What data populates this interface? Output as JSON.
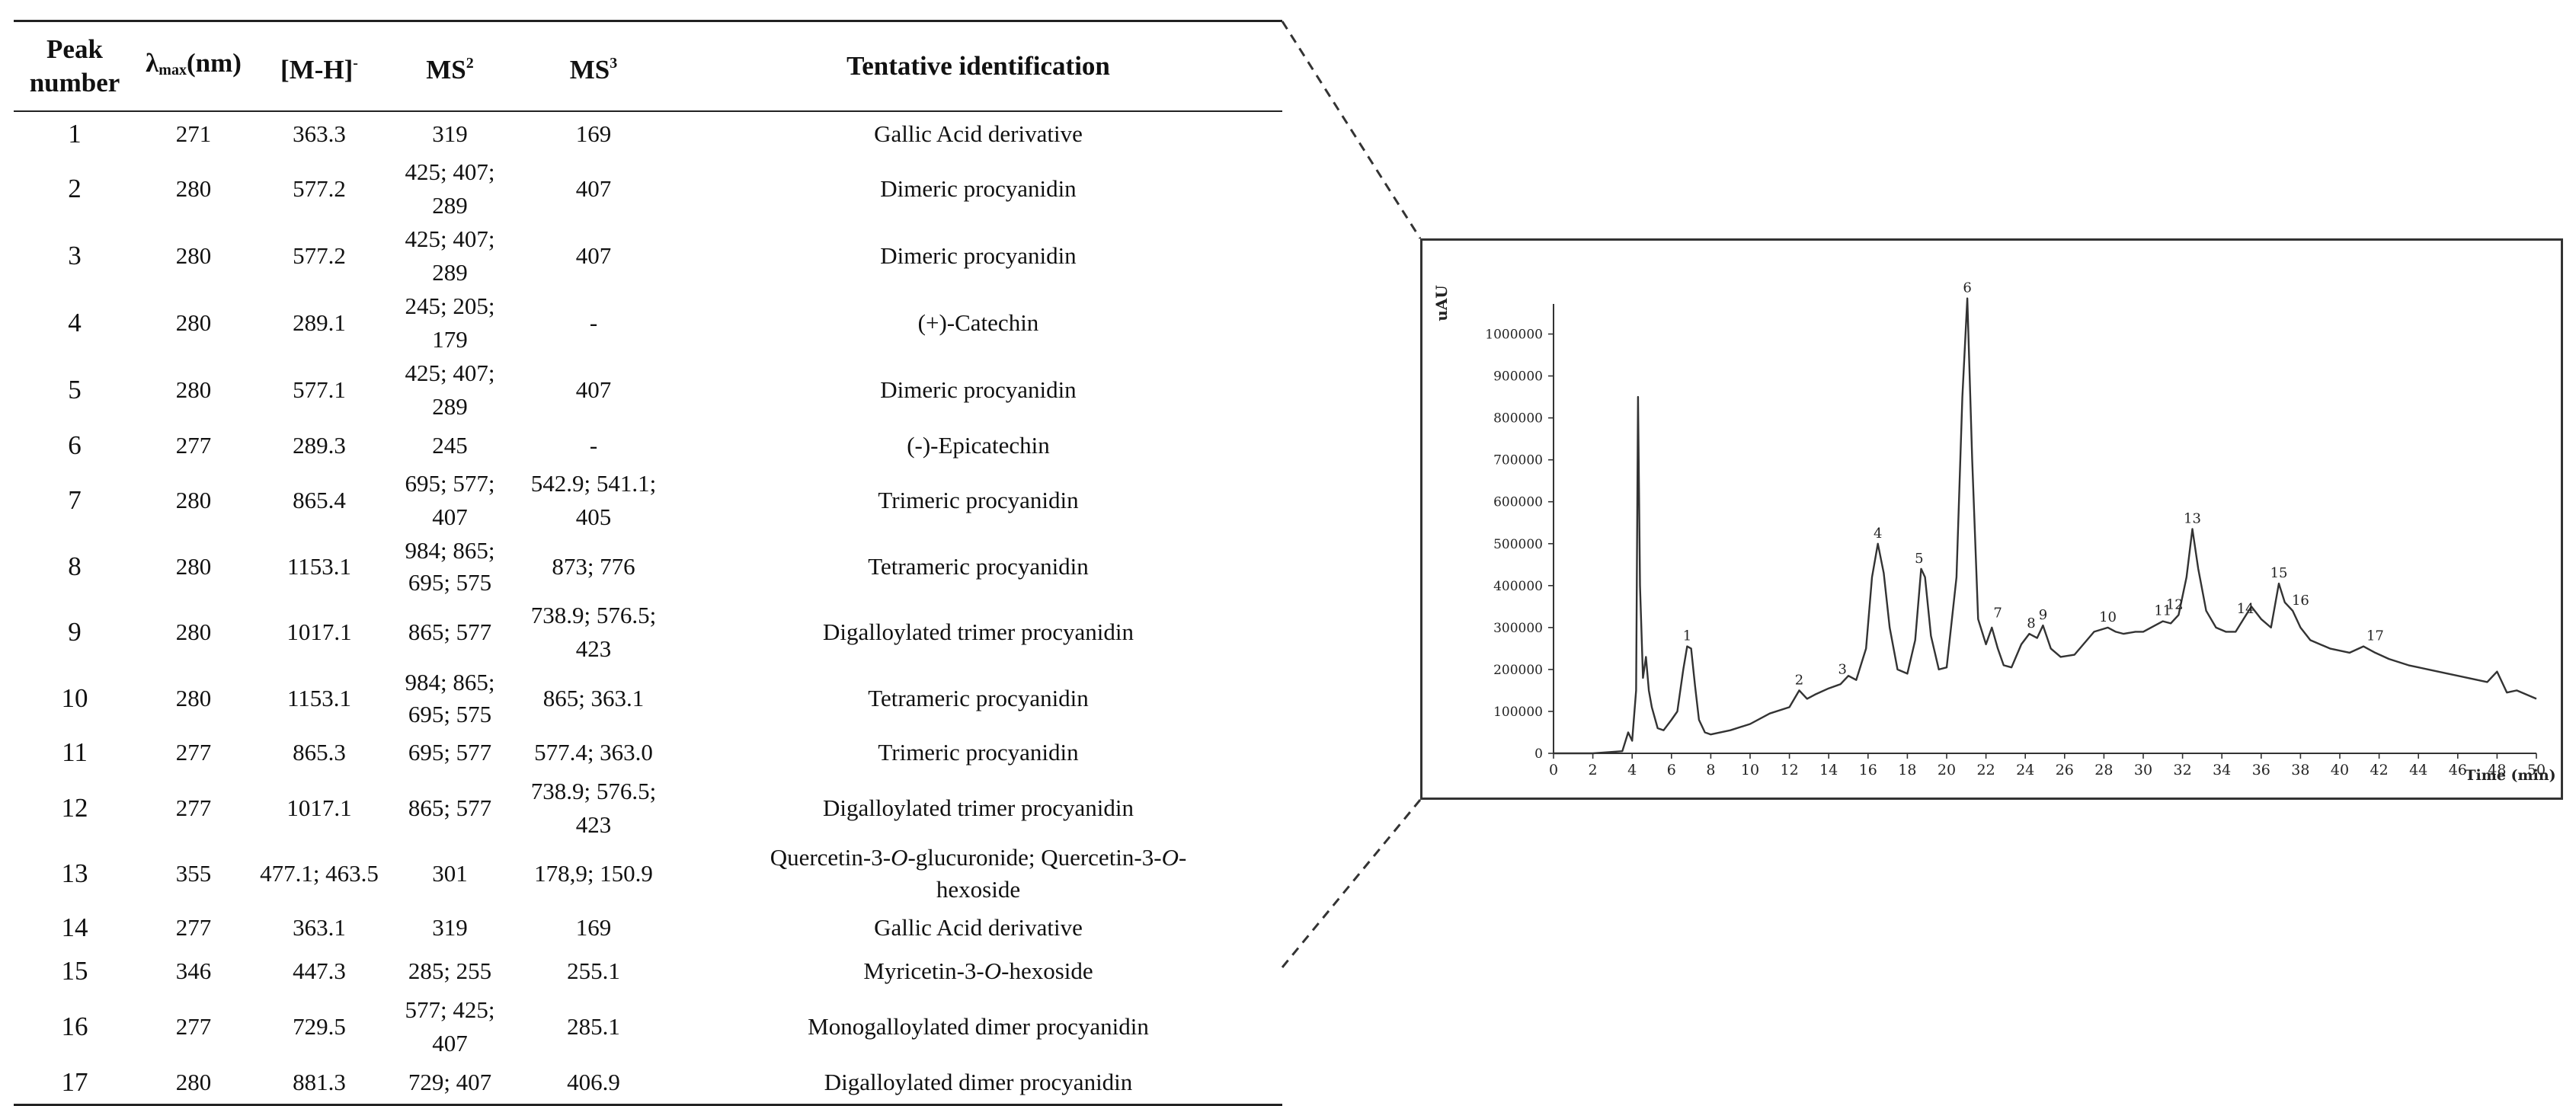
{
  "table": {
    "headers": {
      "peak": "Peak number",
      "lambda_symbol": "λ",
      "lambda_sub": "max",
      "lambda_unit": "(nm)",
      "mh": "[M-H]",
      "mh_sup": "-",
      "ms2": "MS",
      "ms2_sup": "2",
      "ms3": "MS",
      "ms3_sup": "3",
      "id": "Tentative identification"
    },
    "rows": [
      {
        "peak": "1",
        "lambda": "271",
        "mh": "363.3",
        "ms2": "319",
        "ms3": "169",
        "id": "Gallic Acid derivative"
      },
      {
        "peak": "2",
        "lambda": "280",
        "mh": "577.2",
        "ms2": "425; 407; 289",
        "ms3": "407",
        "id": "Dimeric procyanidin"
      },
      {
        "peak": "3",
        "lambda": "280",
        "mh": "577.2",
        "ms2": "425; 407; 289",
        "ms3": "407",
        "id": "Dimeric procyanidin"
      },
      {
        "peak": "4",
        "lambda": "280",
        "mh": "289.1",
        "ms2": "245; 205; 179",
        "ms3": "-",
        "id": "(+)-Catechin"
      },
      {
        "peak": "5",
        "lambda": "280",
        "mh": "577.1",
        "ms2": "425; 407; 289",
        "ms3": "407",
        "id": "Dimeric procyanidin"
      },
      {
        "peak": "6",
        "lambda": "277",
        "mh": "289.3",
        "ms2": "245",
        "ms3": "-",
        "id": "(-)-Epicatechin"
      },
      {
        "peak": "7",
        "lambda": "280",
        "mh": "865.4",
        "ms2": "695; 577; 407",
        "ms3": "542.9; 541.1; 405",
        "id": "Trimeric procyanidin"
      },
      {
        "peak": "8",
        "lambda": "280",
        "mh": "1153.1",
        "ms2": "984; 865; 695; 575",
        "ms3": "873; 776",
        "id": "Tetrameric procyanidin"
      },
      {
        "peak": "9",
        "lambda": "280",
        "mh": "1017.1",
        "ms2": "865; 577",
        "ms3": "738.9; 576.5; 423",
        "id": "Digalloylated trimer procyanidin"
      },
      {
        "peak": "10",
        "lambda": "280",
        "mh": "1153.1",
        "ms2": "984; 865; 695; 575",
        "ms3": "865; 363.1",
        "id": "Tetrameric procyanidin"
      },
      {
        "peak": "11",
        "lambda": "277",
        "mh": "865.3",
        "ms2": "695; 577",
        "ms3": "577.4; 363.0",
        "id": "Trimeric procyanidin"
      },
      {
        "peak": "12",
        "lambda": "277",
        "mh": "1017.1",
        "ms2": "865; 577",
        "ms3": "738.9; 576.5; 423",
        "id": "Digalloylated trimer procyanidin"
      },
      {
        "peak": "13",
        "lambda": "355",
        "mh": "477.1; 463.5",
        "ms2": "301",
        "ms3": "178,9; 150.9",
        "id_a": "Quercetin-3-",
        "id_a_it": "O",
        "id_b": "-glucuronide; Quercetin-3-",
        "id_b_it": "O",
        "id_c": "-",
        "id_line2": "hexoside"
      },
      {
        "peak": "14",
        "lambda": "277",
        "mh": "363.1",
        "ms2": "319",
        "ms3": "169",
        "id": "Gallic Acid derivative"
      },
      {
        "peak": "15",
        "lambda": "346",
        "mh": "447.3",
        "ms2": "285; 255",
        "ms3": "255.1",
        "id_a": "Myricetin-3-",
        "id_a_it": "O",
        "id_b": "-hexoside"
      },
      {
        "peak": "16",
        "lambda": "277",
        "mh": "729.5",
        "ms2": "577; 425; 407",
        "ms3": "285.1",
        "id": "Monogalloylated dimer procyanidin"
      },
      {
        "peak": "17",
        "lambda": "280",
        "mh": "881.3",
        "ms2": "729; 407",
        "ms3": "406.9",
        "id": "Digalloylated dimer procyanidin"
      }
    ]
  },
  "chart_data": {
    "type": "line",
    "xlabel": "Time (min)",
    "ylabel": "uAU",
    "xlim": [
      0,
      50
    ],
    "ylim": [
      0,
      1050000
    ],
    "x_ticks": [
      0,
      2,
      4,
      6,
      8,
      10,
      12,
      14,
      16,
      18,
      20,
      22,
      24,
      26,
      28,
      30,
      32,
      34,
      36,
      38,
      40,
      42,
      44,
      46,
      48,
      50
    ],
    "y_ticks": [
      0,
      100000,
      200000,
      300000,
      400000,
      500000,
      600000,
      700000,
      800000,
      900000,
      1000000
    ],
    "grid": false,
    "series": [
      {
        "x": [
          0,
          2,
          3.5,
          3.8,
          4.0,
          4.2,
          4.3,
          4.4,
          4.55,
          4.7,
          4.85,
          5.0,
          5.3,
          5.6,
          6.0,
          6.3,
          6.6,
          6.8,
          7.0,
          7.2,
          7.4,
          7.7,
          8,
          9,
          10,
          11,
          12,
          12.5,
          12.9,
          13.3,
          14,
          14.6,
          15,
          15.4,
          15.9,
          16.2,
          16.5,
          16.8,
          17.1,
          17.5,
          18,
          18.4,
          18.7,
          18.9,
          19.2,
          19.6,
          20,
          20.5,
          20.8,
          21.05,
          21.3,
          21.6,
          22,
          22.3,
          22.6,
          22.9,
          23.3,
          23.8,
          24.2,
          24.6,
          24.9,
          25.3,
          25.8,
          26.5,
          27.5,
          28.2,
          28.6,
          29,
          29.6,
          30,
          30.6,
          31,
          31.4,
          31.8,
          32.2,
          32.5,
          32.8,
          33.2,
          33.7,
          34.2,
          34.7,
          35.1,
          35.5,
          36,
          36.5,
          36.9,
          37.2,
          37.6,
          38,
          38.5,
          39.5,
          40.5,
          41.2,
          41.8,
          42.5,
          43.5,
          44.5,
          45.5,
          46.5,
          47.5,
          48,
          48.5,
          49,
          49.5,
          50
        ],
        "y": [
          0,
          0,
          5000,
          50000,
          30000,
          150000,
          850000,
          400000,
          180000,
          230000,
          150000,
          110000,
          60000,
          55000,
          80000,
          100000,
          200000,
          255000,
          250000,
          160000,
          80000,
          50000,
          45000,
          55000,
          70000,
          95000,
          110000,
          150000,
          130000,
          140000,
          155000,
          165000,
          185000,
          175000,
          250000,
          420000,
          500000,
          430000,
          300000,
          200000,
          190000,
          270000,
          440000,
          420000,
          280000,
          200000,
          205000,
          420000,
          850000,
          1085000,
          700000,
          320000,
          260000,
          300000,
          250000,
          210000,
          205000,
          260000,
          285000,
          275000,
          305000,
          250000,
          230000,
          235000,
          290000,
          300000,
          290000,
          285000,
          290000,
          290000,
          305000,
          315000,
          310000,
          330000,
          420000,
          535000,
          440000,
          340000,
          300000,
          290000,
          290000,
          320000,
          350000,
          320000,
          300000,
          405000,
          360000,
          340000,
          300000,
          270000,
          250000,
          240000,
          255000,
          240000,
          225000,
          210000,
          200000,
          190000,
          180000,
          170000,
          195000,
          145000,
          150000,
          140000,
          130000
        ]
      }
    ],
    "peak_labels": [
      {
        "label": "1",
        "x": 6.8,
        "y": 255000
      },
      {
        "label": "2",
        "x": 12.5,
        "y": 150000
      },
      {
        "label": "3",
        "x": 14.7,
        "y": 175000
      },
      {
        "label": "4",
        "x": 16.5,
        "y": 500000
      },
      {
        "label": "5",
        "x": 18.6,
        "y": 440000
      },
      {
        "label": "6",
        "x": 21.05,
        "y": 1085000
      },
      {
        "label": "7",
        "x": 22.6,
        "y": 310000
      },
      {
        "label": "8",
        "x": 24.3,
        "y": 285000
      },
      {
        "label": "9",
        "x": 24.9,
        "y": 305000
      },
      {
        "label": "10",
        "x": 28.2,
        "y": 300000
      },
      {
        "label": "11",
        "x": 31.0,
        "y": 315000
      },
      {
        "label": "12",
        "x": 31.6,
        "y": 330000
      },
      {
        "label": "13",
        "x": 32.5,
        "y": 535000
      },
      {
        "label": "14",
        "x": 35.2,
        "y": 320000
      },
      {
        "label": "15",
        "x": 36.9,
        "y": 405000
      },
      {
        "label": "16",
        "x": 38.0,
        "y": 340000
      },
      {
        "label": "17",
        "x": 41.8,
        "y": 255000
      }
    ]
  }
}
